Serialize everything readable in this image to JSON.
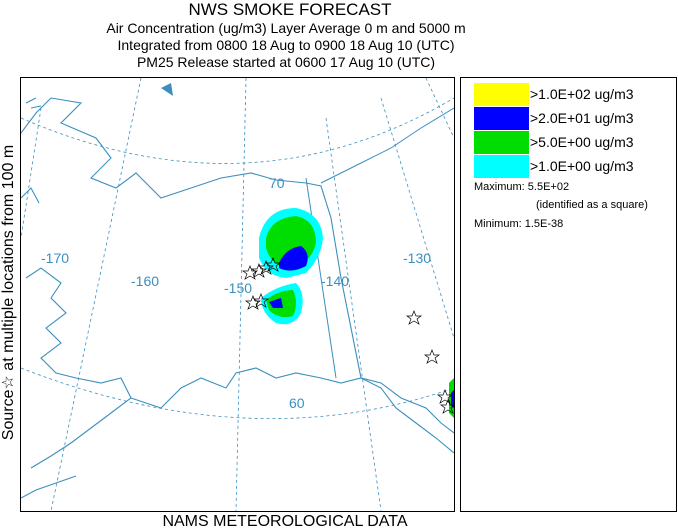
{
  "header": {
    "title": "NWS SMOKE FORECAST",
    "line1": "Air Concentration (ug/m3) Layer Average    0 m and  5000 m",
    "line2": "Integrated from 0800 18 Aug to 0900 18 Aug 10 (UTC)",
    "line3": "PM25 Release started at 0600 17 Aug 10 (UTC)"
  },
  "side_label": "Source☆   at multiple locations   from  100 m",
  "footer": "NAMS METEOROLOGICAL DATA",
  "legend": {
    "items": [
      {
        "label": ">1.0E+02 ug/m3",
        "color": "#ffff00"
      },
      {
        "label": ">2.0E+01 ug/m3",
        "color": "#0000ff"
      },
      {
        "label": ">5.0E+00 ug/m3",
        "color": "#00dd00"
      },
      {
        "label": ">1.0E+00 ug/m3",
        "color": "#00ffff"
      }
    ],
    "maximum_label": "Maximum: 5.5E+02",
    "maximum_note": "(identified as a square)",
    "minimum_label": "Minimum: 1.5E-38"
  },
  "map": {
    "longitude_labels": [
      "-170",
      "-160",
      "-150",
      "-140",
      "-130"
    ],
    "latitude_labels": [
      "70",
      "60"
    ],
    "colors": {
      "coast": "#3b8fbf",
      "grid": "#3b8fbf"
    }
  }
}
